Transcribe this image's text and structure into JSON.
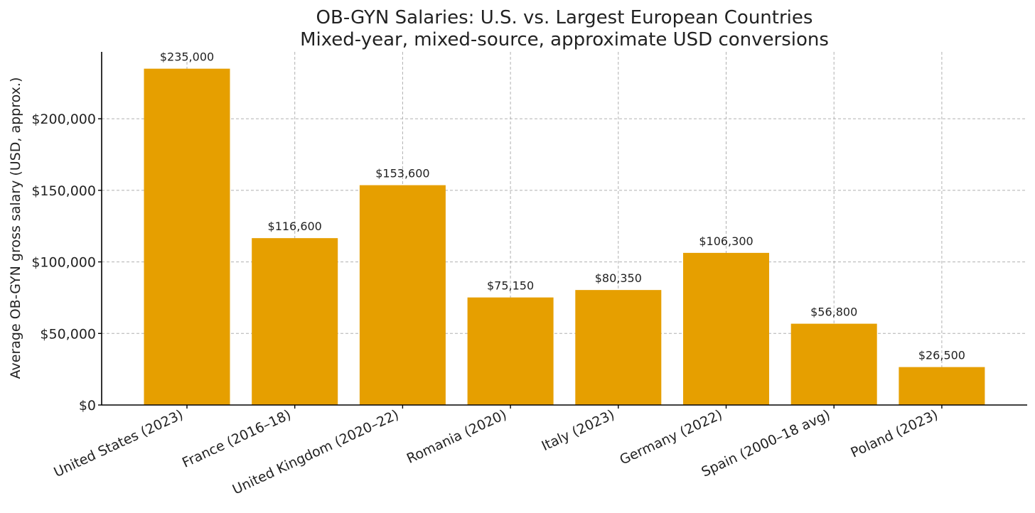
{
  "chart_data": {
    "type": "bar",
    "title": "OB-GYN Salaries: U.S. vs. Largest European Countries",
    "subtitle": "Mixed-year, mixed-source, approximate USD conversions",
    "xlabel": "",
    "ylabel": "Average OB-GYN gross salary (USD, approx.)",
    "categories": [
      "United States (2023)",
      "France (2016–18)",
      "United Kingdom (2020–22)",
      "Romania (2020)",
      "Italy (2023)",
      "Germany (2022)",
      "Spain (2000–18 avg)",
      "Poland (2023)"
    ],
    "values": [
      235000,
      116600,
      153600,
      75150,
      80350,
      106300,
      56800,
      26500
    ],
    "data_labels": [
      "$235,000",
      "$116,600",
      "$153,600",
      "$75,150",
      "$80,350",
      "$106,300",
      "$56,800",
      "$26,500"
    ],
    "ylim": [
      0,
      246750
    ],
    "y_ticks": [
      0,
      50000,
      100000,
      150000,
      200000
    ],
    "y_tick_labels": [
      "$0",
      "$50,000",
      "$100,000",
      "$150,000",
      "$200,000"
    ],
    "bar_color": "#E69F00",
    "grid": true,
    "legend": "none"
  }
}
